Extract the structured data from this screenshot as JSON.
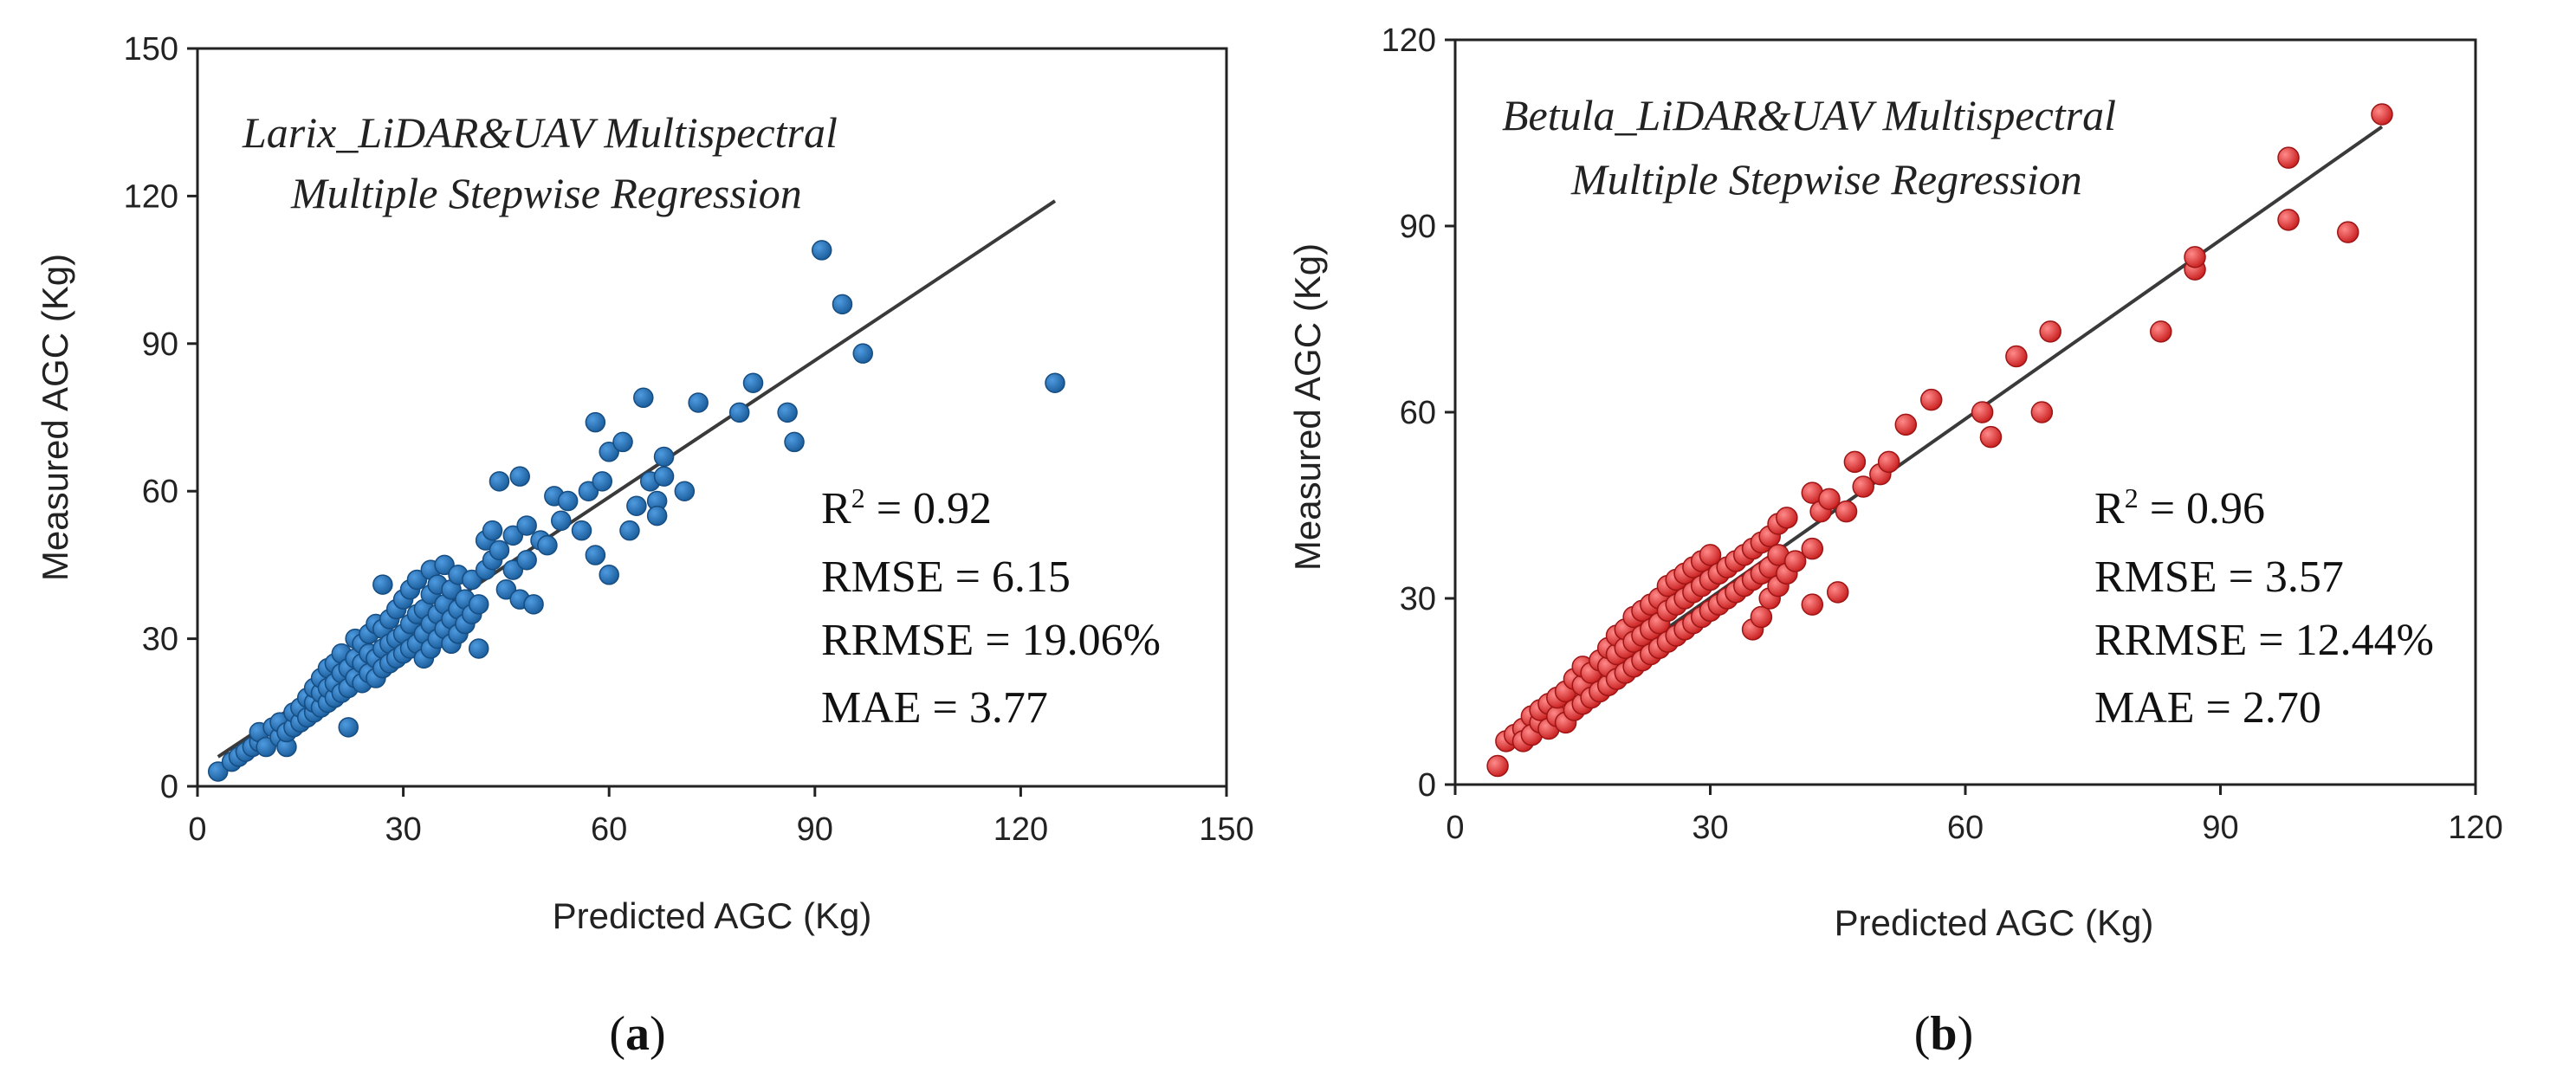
{
  "chart_data": [
    {
      "type": "scatter",
      "id": "a",
      "title_lines": [
        "Larix_LiDAR&UAV Multispectral",
        "Multiple Stepwise Regression"
      ],
      "xlabel": "Predicted AGC (Kg)",
      "ylabel": "Measured AGC (Kg)",
      "xlim": [
        0,
        150
      ],
      "ylim": [
        0,
        150
      ],
      "xticks": [
        0,
        30,
        60,
        90,
        120,
        150
      ],
      "yticks": [
        0,
        30,
        60,
        90,
        120,
        150
      ],
      "fit_line": [
        [
          3,
          6
        ],
        [
          125,
          119
        ]
      ],
      "marker_color": "#1f6fb5",
      "stats": {
        "r2_prefix": "R",
        "r2_sup": "2",
        "r2_value": " = 0.92",
        "rmse": "RMSE = 6.15",
        "rrmse": "RRMSE = 19.06%",
        "mae": "MAE = 3.77"
      },
      "panel_label": "a",
      "points": [
        [
          3,
          3
        ],
        [
          5,
          5
        ],
        [
          6,
          6
        ],
        [
          7,
          7
        ],
        [
          8,
          8
        ],
        [
          9,
          9
        ],
        [
          9,
          11
        ],
        [
          10,
          8
        ],
        [
          11,
          12
        ],
        [
          12,
          10
        ],
        [
          12,
          13
        ],
        [
          13,
          8
        ],
        [
          13,
          11
        ],
        [
          14,
          12
        ],
        [
          14,
          15
        ],
        [
          15,
          13
        ],
        [
          15,
          16
        ],
        [
          16,
          14
        ],
        [
          16,
          18
        ],
        [
          17,
          15
        ],
        [
          17,
          17
        ],
        [
          17,
          20
        ],
        [
          18,
          16
        ],
        [
          18,
          19
        ],
        [
          18,
          22
        ],
        [
          19,
          17
        ],
        [
          19,
          20
        ],
        [
          19,
          24
        ],
        [
          20,
          18
        ],
        [
          20,
          21
        ],
        [
          20,
          25
        ],
        [
          21,
          19
        ],
        [
          21,
          23
        ],
        [
          21,
          27
        ],
        [
          22,
          12
        ],
        [
          22,
          20
        ],
        [
          22,
          24
        ],
        [
          23,
          22
        ],
        [
          23,
          26
        ],
        [
          23,
          30
        ],
        [
          24,
          21
        ],
        [
          24,
          25
        ],
        [
          24,
          29
        ],
        [
          25,
          23
        ],
        [
          25,
          27
        ],
        [
          25,
          31
        ],
        [
          26,
          22
        ],
        [
          26,
          26
        ],
        [
          26,
          33
        ],
        [
          27,
          24
        ],
        [
          27,
          28
        ],
        [
          27,
          32
        ],
        [
          27,
          41
        ],
        [
          28,
          25
        ],
        [
          28,
          29
        ],
        [
          28,
          34
        ],
        [
          29,
          26
        ],
        [
          29,
          30
        ],
        [
          29,
          36
        ],
        [
          30,
          27
        ],
        [
          30,
          31
        ],
        [
          30,
          38
        ],
        [
          31,
          28
        ],
        [
          31,
          33
        ],
        [
          31,
          40
        ],
        [
          32,
          29
        ],
        [
          32,
          35
        ],
        [
          32,
          42
        ],
        [
          33,
          26
        ],
        [
          33,
          31
        ],
        [
          33,
          36
        ],
        [
          34,
          28
        ],
        [
          34,
          33
        ],
        [
          34,
          39
        ],
        [
          34,
          44
        ],
        [
          35,
          30
        ],
        [
          35,
          35
        ],
        [
          35,
          41
        ],
        [
          36,
          32
        ],
        [
          36,
          37
        ],
        [
          36,
          45
        ],
        [
          37,
          29
        ],
        [
          37,
          34
        ],
        [
          37,
          40
        ],
        [
          38,
          31
        ],
        [
          38,
          36
        ],
        [
          38,
          43
        ],
        [
          39,
          33
        ],
        [
          39,
          38
        ],
        [
          40,
          35
        ],
        [
          40,
          42
        ],
        [
          41,
          28
        ],
        [
          41,
          37
        ],
        [
          42,
          44
        ],
        [
          42,
          50
        ],
        [
          43,
          46
        ],
        [
          43,
          52
        ],
        [
          44,
          48
        ],
        [
          44,
          62
        ],
        [
          45,
          40
        ],
        [
          46,
          44
        ],
        [
          46,
          51
        ],
        [
          47,
          63
        ],
        [
          47,
          38
        ],
        [
          48,
          46
        ],
        [
          48,
          53
        ],
        [
          49,
          37
        ],
        [
          50,
          50
        ],
        [
          51,
          49
        ],
        [
          52,
          59
        ],
        [
          53,
          54
        ],
        [
          54,
          58
        ],
        [
          56,
          52
        ],
        [
          57,
          60
        ],
        [
          58,
          47
        ],
        [
          58,
          74
        ],
        [
          59,
          62
        ],
        [
          60,
          43
        ],
        [
          60,
          68
        ],
        [
          62,
          70
        ],
        [
          63,
          52
        ],
        [
          64,
          57
        ],
        [
          65,
          79
        ],
        [
          66,
          62
        ],
        [
          67,
          58
        ],
        [
          67,
          55
        ],
        [
          68,
          67
        ],
        [
          68,
          63
        ],
        [
          71,
          60
        ],
        [
          73,
          78
        ],
        [
          79,
          76
        ],
        [
          81,
          82
        ],
        [
          86,
          76
        ],
        [
          87,
          70
        ],
        [
          91,
          109
        ],
        [
          94,
          98
        ],
        [
          97,
          88
        ],
        [
          125,
          82
        ]
      ]
    },
    {
      "type": "scatter",
      "id": "b",
      "title_lines": [
        "Betula_LiDAR&UAV Multispectral",
        "Multiple Stepwise Regression"
      ],
      "xlabel": "Predicted AGC (Kg)",
      "ylabel": "Measured AGC (Kg)",
      "xlim": [
        0,
        120
      ],
      "ylim": [
        0,
        120
      ],
      "xticks": [
        0,
        30,
        60,
        90,
        120
      ],
      "yticks": [
        0,
        30,
        60,
        90,
        120
      ],
      "fit_line": [
        [
          6,
          7
        ],
        [
          109,
          106
        ]
      ],
      "marker_color": "#e02b2b",
      "stats": {
        "r2_prefix": "R",
        "r2_sup": "2",
        "r2_value": " = 0.96",
        "rmse": "RMSE = 3.57",
        "rrmse": "RRMSE = 12.44%",
        "mae": "MAE = 2.70"
      },
      "panel_label": "b",
      "points": [
        [
          5,
          3
        ],
        [
          6,
          7
        ],
        [
          7,
          8
        ],
        [
          8,
          9
        ],
        [
          8,
          7
        ],
        [
          9,
          11
        ],
        [
          9,
          8
        ],
        [
          10,
          10
        ],
        [
          10,
          12
        ],
        [
          11,
          9
        ],
        [
          11,
          13
        ],
        [
          12,
          11
        ],
        [
          12,
          14
        ],
        [
          13,
          10
        ],
        [
          13,
          15
        ],
        [
          14,
          12
        ],
        [
          14,
          17
        ],
        [
          15,
          13
        ],
        [
          15,
          16
        ],
        [
          15,
          19
        ],
        [
          16,
          14
        ],
        [
          16,
          18
        ],
        [
          17,
          15
        ],
        [
          17,
          20
        ],
        [
          18,
          16
        ],
        [
          18,
          19
        ],
        [
          18,
          22
        ],
        [
          19,
          17
        ],
        [
          19,
          21
        ],
        [
          19,
          24
        ],
        [
          20,
          18
        ],
        [
          20,
          22
        ],
        [
          20,
          25
        ],
        [
          21,
          19
        ],
        [
          21,
          23
        ],
        [
          21,
          27
        ],
        [
          22,
          20
        ],
        [
          22,
          24
        ],
        [
          22,
          28
        ],
        [
          23,
          21
        ],
        [
          23,
          25
        ],
        [
          23,
          29
        ],
        [
          24,
          22
        ],
        [
          24,
          26
        ],
        [
          24,
          30
        ],
        [
          25,
          23
        ],
        [
          25,
          28
        ],
        [
          25,
          32
        ],
        [
          26,
          24
        ],
        [
          26,
          29
        ],
        [
          26,
          33
        ],
        [
          27,
          25
        ],
        [
          27,
          30
        ],
        [
          27,
          34
        ],
        [
          28,
          26
        ],
        [
          28,
          31
        ],
        [
          28,
          35
        ],
        [
          29,
          27
        ],
        [
          29,
          32
        ],
        [
          29,
          36
        ],
        [
          30,
          28
        ],
        [
          30,
          33
        ],
        [
          30,
          37
        ],
        [
          31,
          29
        ],
        [
          31,
          34
        ],
        [
          32,
          30
        ],
        [
          32,
          35
        ],
        [
          33,
          31
        ],
        [
          33,
          36
        ],
        [
          34,
          32
        ],
        [
          34,
          37
        ],
        [
          35,
          25
        ],
        [
          35,
          33
        ],
        [
          35,
          38
        ],
        [
          36,
          27
        ],
        [
          36,
          34
        ],
        [
          36,
          39
        ],
        [
          37,
          30
        ],
        [
          37,
          35
        ],
        [
          37,
          40
        ],
        [
          38,
          32
        ],
        [
          38,
          37
        ],
        [
          38,
          42
        ],
        [
          39,
          34
        ],
        [
          39,
          43
        ],
        [
          40,
          36
        ],
        [
          42,
          29
        ],
        [
          42,
          38
        ],
        [
          42,
          47
        ],
        [
          43,
          44
        ],
        [
          44,
          46
        ],
        [
          45,
          31
        ],
        [
          46,
          44
        ],
        [
          47,
          52
        ],
        [
          48,
          48
        ],
        [
          50,
          50
        ],
        [
          51,
          52
        ],
        [
          53,
          58
        ],
        [
          56,
          62
        ],
        [
          62,
          60
        ],
        [
          63,
          56
        ],
        [
          66,
          69
        ],
        [
          69,
          60
        ],
        [
          70,
          73
        ],
        [
          83,
          73
        ],
        [
          87,
          83
        ],
        [
          87,
          85
        ],
        [
          98,
          101
        ],
        [
          98,
          91
        ],
        [
          105,
          89
        ],
        [
          109,
          108
        ]
      ]
    }
  ]
}
